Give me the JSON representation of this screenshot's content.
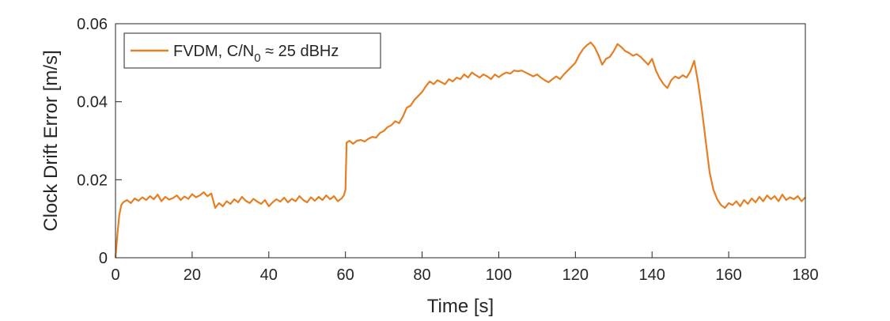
{
  "chart_data": {
    "type": "line",
    "title": "",
    "xlabel": "Time [s]",
    "ylabel": "Clock Drift Error [m/s]",
    "xlim": [
      0,
      180
    ],
    "ylim": [
      0,
      0.06
    ],
    "xticks": [
      0,
      20,
      40,
      60,
      80,
      100,
      120,
      140,
      160,
      180
    ],
    "yticks": [
      0,
      0.02,
      0.04,
      0.06
    ],
    "xtick_labels": [
      "0",
      "20",
      "40",
      "60",
      "80",
      "100",
      "120",
      "140",
      "160",
      "180"
    ],
    "ytick_labels": [
      "0",
      "0.02",
      "0.04",
      "0.06"
    ],
    "grid": false,
    "legend_position": "top-left",
    "legend": {
      "prefix": "FVDM, C/N",
      "subscript": "0",
      "suffix": " ≈ 25 dBHz"
    },
    "series": [
      {
        "name": "FVDM, C/N0 ≈ 25 dBHz",
        "color": "#E67E22",
        "x": [
          0,
          0.5,
          1,
          1.5,
          2,
          3,
          4,
          5,
          6,
          7,
          8,
          9,
          10,
          11,
          12,
          13,
          14,
          15,
          16,
          17,
          18,
          19,
          20,
          21,
          22,
          23,
          24,
          25,
          26,
          27,
          28,
          29,
          30,
          31,
          32,
          33,
          34,
          35,
          36,
          37,
          38,
          39,
          40,
          41,
          42,
          43,
          44,
          45,
          46,
          47,
          48,
          49,
          50,
          51,
          52,
          53,
          54,
          55,
          56,
          57,
          58,
          59,
          59.6,
          60,
          60.3,
          61,
          62,
          63,
          64,
          65,
          66,
          67,
          68,
          69,
          70,
          71,
          72,
          73,
          74,
          75,
          76,
          77,
          78,
          79,
          80,
          81,
          82,
          83,
          84,
          85,
          86,
          87,
          88,
          89,
          90,
          91,
          92,
          93,
          94,
          95,
          96,
          97,
          98,
          99,
          100,
          101,
          102,
          103,
          104,
          105,
          106,
          107,
          108,
          109,
          110,
          111,
          112,
          113,
          114,
          115,
          116,
          117,
          118,
          119,
          120,
          121,
          122,
          123,
          124,
          125,
          126,
          127,
          128,
          129,
          130,
          131,
          132,
          133,
          134,
          135,
          136,
          137,
          138,
          139,
          140,
          141,
          142,
          143,
          144,
          145,
          146,
          147,
          148,
          149,
          150,
          151,
          152,
          153,
          154,
          155,
          156,
          157,
          158,
          159,
          160,
          161,
          162,
          163,
          164,
          165,
          166,
          167,
          168,
          169,
          170,
          171,
          172,
          173,
          174,
          175,
          176,
          177,
          178,
          179,
          180
        ],
        "y": [
          0,
          0.006,
          0.011,
          0.0135,
          0.0142,
          0.0148,
          0.014,
          0.0152,
          0.0146,
          0.0155,
          0.0148,
          0.0158,
          0.015,
          0.0162,
          0.0145,
          0.0156,
          0.0149,
          0.0153,
          0.016,
          0.0148,
          0.0157,
          0.0151,
          0.0163,
          0.0155,
          0.016,
          0.0168,
          0.0158,
          0.0165,
          0.0128,
          0.014,
          0.0132,
          0.0145,
          0.0138,
          0.015,
          0.0142,
          0.0156,
          0.0146,
          0.014,
          0.0151,
          0.0144,
          0.0138,
          0.0148,
          0.0132,
          0.0142,
          0.015,
          0.0144,
          0.0154,
          0.0142,
          0.0151,
          0.0145,
          0.0158,
          0.0148,
          0.0142,
          0.0155,
          0.0146,
          0.0156,
          0.0148,
          0.016,
          0.015,
          0.0158,
          0.0145,
          0.0152,
          0.016,
          0.0175,
          0.0295,
          0.03,
          0.0292,
          0.03,
          0.0302,
          0.0298,
          0.0305,
          0.031,
          0.0308,
          0.032,
          0.0325,
          0.0335,
          0.034,
          0.035,
          0.0345,
          0.0362,
          0.0385,
          0.039,
          0.0405,
          0.0415,
          0.0425,
          0.044,
          0.0452,
          0.0445,
          0.0455,
          0.045,
          0.0445,
          0.0458,
          0.0452,
          0.0462,
          0.0458,
          0.047,
          0.0462,
          0.0475,
          0.0468,
          0.0462,
          0.047,
          0.0465,
          0.0458,
          0.047,
          0.0463,
          0.047,
          0.0475,
          0.0472,
          0.048,
          0.0478,
          0.048,
          0.0475,
          0.047,
          0.0465,
          0.047,
          0.0462,
          0.0455,
          0.045,
          0.0458,
          0.0465,
          0.0458,
          0.047,
          0.048,
          0.049,
          0.05,
          0.052,
          0.0535,
          0.0545,
          0.0552,
          0.054,
          0.052,
          0.0495,
          0.051,
          0.0515,
          0.053,
          0.0548,
          0.054,
          0.053,
          0.0525,
          0.0518,
          0.0522,
          0.0515,
          0.0505,
          0.0495,
          0.051,
          0.048,
          0.046,
          0.0445,
          0.0435,
          0.0455,
          0.0465,
          0.046,
          0.0468,
          0.0462,
          0.0478,
          0.0505,
          0.045,
          0.038,
          0.03,
          0.022,
          0.0175,
          0.015,
          0.0135,
          0.0128,
          0.014,
          0.0135,
          0.0145,
          0.0132,
          0.0148,
          0.0138,
          0.0152,
          0.0142,
          0.0156,
          0.0145,
          0.016,
          0.015,
          0.0158,
          0.0145,
          0.0162,
          0.0148,
          0.0155,
          0.015,
          0.0158,
          0.0145,
          0.0155
        ]
      }
    ]
  }
}
